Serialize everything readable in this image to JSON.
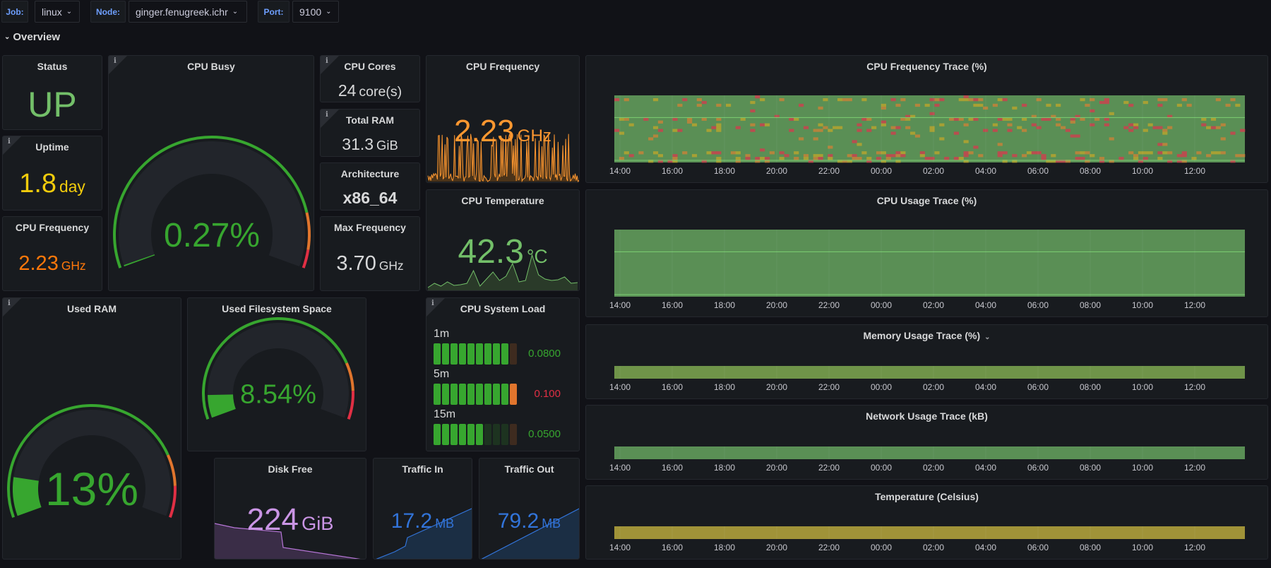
{
  "variables": [
    {
      "label": "Job:",
      "value": "linux"
    },
    {
      "label": "Node:",
      "value": "ginger.fenugreek.ichr"
    },
    {
      "label": "Port:",
      "value": "9100"
    }
  ],
  "row": {
    "title": "Overview",
    "collapsed": false
  },
  "colors": {
    "green": "#37a62f",
    "light_green": "#73bf69",
    "orange": "#ff780a",
    "amber": "#ff9830",
    "yellow": "#fade2a",
    "red": "#e02f44",
    "purple": "#ca95e5",
    "blue": "#3274d9",
    "text": "#d8d9da"
  },
  "panels": {
    "status": {
      "title": "Status",
      "value": "UP"
    },
    "uptime": {
      "title": "Uptime",
      "value": "1.8",
      "unit": "day",
      "has_info": true
    },
    "cpu_freq_small": {
      "title": "CPU Frequency",
      "value": "2.23",
      "unit": "GHz"
    },
    "cpu_busy": {
      "title": "CPU Busy",
      "value": "0.27%",
      "percent": 0.27,
      "thresholds": [
        85,
        95
      ],
      "has_info": true
    },
    "cpu_cores": {
      "title": "CPU Cores",
      "value": "24",
      "unit": "core(s)",
      "has_info": true
    },
    "total_ram": {
      "title": "Total RAM",
      "value": "31.3",
      "unit": "GiB",
      "has_info": true
    },
    "architecture": {
      "title": "Architecture",
      "value": "x86_64"
    },
    "max_freq": {
      "title": "Max Frequency",
      "value": "3.70",
      "unit": "GHz"
    },
    "cpu_freq_spark": {
      "title": "CPU Frequency",
      "value": "2.23",
      "unit": "GHz"
    },
    "cpu_temp": {
      "title": "CPU Temperature",
      "value": "42.3",
      "unit": "°C"
    },
    "used_ram": {
      "title": "Used RAM",
      "value": "13%",
      "percent": 13,
      "thresholds": [
        80,
        90
      ],
      "has_info": true
    },
    "used_fs": {
      "title": "Used Filesystem Space",
      "value": "8.54%",
      "percent": 8.54,
      "thresholds": [
        80,
        90
      ]
    },
    "cpu_load": {
      "title": "CPU System Load",
      "has_info": true,
      "rows": [
        {
          "label": "1m",
          "value": "0.0800",
          "lit": 9,
          "last": "dim-orange",
          "color": "#37a62f"
        },
        {
          "label": "5m",
          "value": "0.100",
          "lit": 10,
          "last": "orange",
          "color": "#e02f44"
        },
        {
          "label": "15m",
          "value": "0.0500",
          "lit": 6,
          "last": "dim-orange",
          "color": "#37a62f"
        }
      ]
    },
    "disk_free": {
      "title": "Disk Free",
      "value": "224",
      "unit": "GiB"
    },
    "traffic_in": {
      "title": "Traffic In",
      "value": "17.2",
      "unit": "MB"
    },
    "traffic_out": {
      "title": "Traffic Out",
      "value": "79.2",
      "unit": "MB"
    }
  },
  "chart_data": [
    {
      "type": "heatmap",
      "title": "CPU Frequency Trace (%)",
      "x_ticks": [
        "14:00",
        "16:00",
        "18:00",
        "20:00",
        "22:00",
        "00:00",
        "02:00",
        "04:00",
        "06:00",
        "08:00",
        "10:00",
        "12:00"
      ],
      "base_color": "#5a8f55",
      "highlight_colors": [
        "#b5a32f",
        "#c4833a",
        "#c9434f"
      ]
    },
    {
      "type": "heatmap",
      "title": "CPU Usage Trace (%)",
      "x_ticks": [
        "14:00",
        "16:00",
        "18:00",
        "20:00",
        "22:00",
        "00:00",
        "02:00",
        "04:00",
        "06:00",
        "08:00",
        "10:00",
        "12:00"
      ],
      "base_color": "#5a8f55"
    },
    {
      "type": "heatmap",
      "title": "Memory Usage Trace (%)",
      "has_menu": true,
      "x_ticks": [
        "14:00",
        "16:00",
        "18:00",
        "20:00",
        "22:00",
        "00:00",
        "02:00",
        "04:00",
        "06:00",
        "08:00",
        "10:00",
        "12:00"
      ],
      "base_color": "#6f9449"
    },
    {
      "type": "heatmap",
      "title": "Network Usage Trace (kB)",
      "x_ticks": [
        "14:00",
        "16:00",
        "18:00",
        "20:00",
        "22:00",
        "00:00",
        "02:00",
        "04:00",
        "06:00",
        "08:00",
        "10:00",
        "12:00"
      ],
      "base_color": "#5a8f55"
    },
    {
      "type": "heatmap",
      "title": "Temperature (Celsius)",
      "x_ticks": [
        "14:00",
        "16:00",
        "18:00",
        "20:00",
        "22:00",
        "00:00",
        "02:00",
        "04:00",
        "06:00",
        "08:00",
        "10:00",
        "12:00"
      ],
      "base_color": "#a09338"
    }
  ]
}
